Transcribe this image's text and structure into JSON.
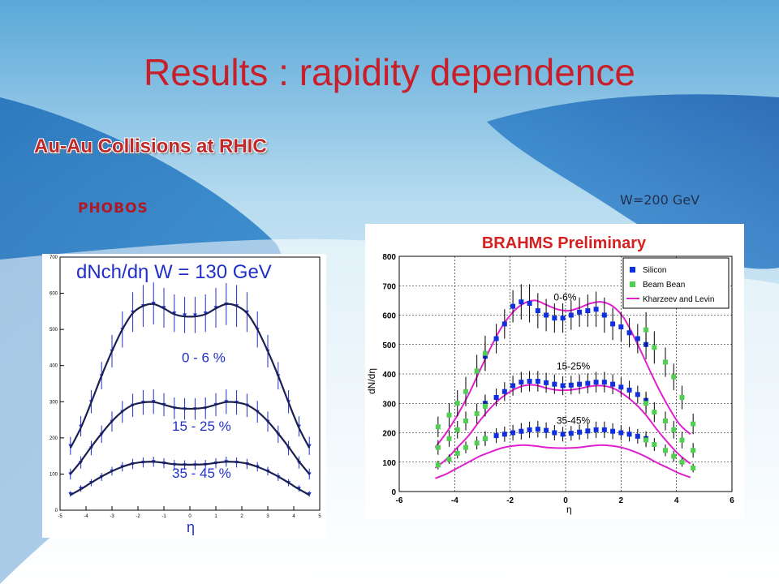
{
  "slide": {
    "title": "Results : rapidity dependence",
    "subtitle": "Au-Au Collisions at RHIC",
    "phobos_label": "PHOBOS",
    "energy_label": "W=200 GeV"
  },
  "colors": {
    "title": "#c8202a",
    "phobos_curve": "#1a2050",
    "phobos_points": "#2030c8",
    "brahms_silicon": "#1030e0",
    "brahms_beambean": "#50d050",
    "brahms_kl": "#e020d0",
    "brahms_title": "#d42020"
  },
  "chart_data": [
    {
      "type": "scatter",
      "panel": "PHOBOS",
      "title": "dNch/dη   W = 130 GeV",
      "xlabel": "η",
      "ylabel": "",
      "xlim": [
        -5,
        5
      ],
      "ylim": [
        0,
        700
      ],
      "xticks": [
        "-5",
        "-4",
        "-3",
        "-2",
        "-1",
        "0",
        "1",
        "2",
        "3",
        "4",
        "5"
      ],
      "yticks": [
        "0",
        "100",
        "200",
        "300",
        "400",
        "500",
        "600",
        "700"
      ],
      "grid": false,
      "series": [
        {
          "name": "0 - 6 %",
          "x": [
            -4.6,
            -4.2,
            -3.8,
            -3.4,
            -3.0,
            -2.6,
            -2.2,
            -1.8,
            -1.4,
            -1.0,
            -0.6,
            -0.2,
            0.2,
            0.6,
            1.0,
            1.4,
            1.8,
            2.2,
            2.6,
            3.0,
            3.4,
            3.8,
            4.2,
            4.6
          ],
          "y": [
            178,
            232,
            300,
            372,
            440,
            500,
            548,
            565,
            572,
            560,
            545,
            540,
            540,
            545,
            560,
            570,
            565,
            548,
            500,
            440,
            372,
            300,
            232,
            178
          ],
          "err": [
            25,
            28,
            32,
            38,
            45,
            50,
            55,
            58,
            58,
            55,
            52,
            50,
            50,
            52,
            55,
            58,
            58,
            55,
            50,
            45,
            38,
            32,
            28,
            25
          ]
        },
        {
          "name": "15 - 25 %",
          "x": [
            -4.6,
            -4.2,
            -3.8,
            -3.4,
            -3.0,
            -2.6,
            -2.2,
            -1.8,
            -1.4,
            -1.0,
            -0.6,
            -0.2,
            0.2,
            0.6,
            1.0,
            1.4,
            1.8,
            2.2,
            2.6,
            3.0,
            3.4,
            3.8,
            4.2,
            4.6
          ],
          "y": [
            100,
            132,
            172,
            210,
            245,
            272,
            290,
            298,
            300,
            292,
            282,
            280,
            280,
            282,
            292,
            300,
            298,
            290,
            272,
            245,
            210,
            172,
            132,
            100
          ],
          "err": [
            15,
            17,
            20,
            24,
            28,
            30,
            32,
            34,
            34,
            32,
            30,
            30,
            30,
            30,
            32,
            34,
            34,
            32,
            30,
            28,
            24,
            20,
            17,
            15
          ]
        },
        {
          "name": "35 - 45 %",
          "x": [
            -4.6,
            -4.2,
            -3.8,
            -3.4,
            -3.0,
            -2.6,
            -2.2,
            -1.8,
            -1.4,
            -1.0,
            -0.6,
            -0.2,
            0.2,
            0.6,
            1.0,
            1.4,
            1.8,
            2.2,
            2.6,
            3.0,
            3.4,
            3.8,
            4.2,
            4.6
          ],
          "y": [
            45,
            60,
            76,
            92,
            108,
            120,
            128,
            132,
            134,
            130,
            126,
            125,
            125,
            126,
            130,
            134,
            132,
            128,
            120,
            108,
            92,
            76,
            60,
            45
          ],
          "err": [
            8,
            9,
            10,
            11,
            12,
            13,
            14,
            14,
            14,
            14,
            13,
            13,
            13,
            13,
            14,
            14,
            14,
            14,
            13,
            12,
            11,
            10,
            9,
            8
          ]
        }
      ],
      "curves": [
        {
          "name": "0 - 6 %",
          "x": [
            -4.6,
            -4.2,
            -3.8,
            -3.4,
            -3.0,
            -2.6,
            -2.2,
            -1.8,
            -1.4,
            -1.0,
            -0.6,
            -0.2,
            0.2,
            0.6,
            1.0,
            1.4,
            1.8,
            2.2,
            2.6,
            3.0,
            3.4,
            3.8,
            4.2,
            4.6
          ],
          "y": [
            172,
            228,
            298,
            372,
            440,
            500,
            545,
            565,
            570,
            558,
            542,
            536,
            536,
            542,
            558,
            570,
            565,
            545,
            500,
            440,
            372,
            298,
            228,
            172
          ]
        },
        {
          "name": "15 - 25 %",
          "x": [
            -4.6,
            -4.2,
            -3.8,
            -3.4,
            -3.0,
            -2.6,
            -2.2,
            -1.8,
            -1.4,
            -1.0,
            -0.6,
            -0.2,
            0.2,
            0.6,
            1.0,
            1.4,
            1.8,
            2.2,
            2.6,
            3.0,
            3.4,
            3.8,
            4.2,
            4.6
          ],
          "y": [
            100,
            135,
            175,
            212,
            246,
            273,
            291,
            298,
            299,
            292,
            284,
            281,
            281,
            284,
            292,
            299,
            298,
            291,
            273,
            246,
            212,
            175,
            135,
            100
          ]
        },
        {
          "name": "35 - 45 %",
          "x": [
            -4.6,
            -4.2,
            -3.8,
            -3.4,
            -3.0,
            -2.6,
            -2.2,
            -1.8,
            -1.4,
            -1.0,
            -0.6,
            -0.2,
            0.2,
            0.6,
            1.0,
            1.4,
            1.8,
            2.2,
            2.6,
            3.0,
            3.4,
            3.8,
            4.2,
            4.6
          ],
          "y": [
            42,
            58,
            76,
            93,
            108,
            120,
            129,
            133,
            134,
            131,
            127,
            126,
            126,
            127,
            131,
            134,
            133,
            129,
            120,
            108,
            93,
            76,
            58,
            42
          ]
        }
      ],
      "annotations": [
        "0 - 6 %",
        "15 - 25 %",
        "35 - 45 %"
      ]
    },
    {
      "type": "scatter",
      "panel": "BRAHMS",
      "title": "BRAHMS Preliminary",
      "xlabel": "η",
      "ylabel": "dN/dη",
      "xlim": [
        -6,
        6
      ],
      "ylim": [
        0,
        800
      ],
      "xticks": [
        "-6",
        "-4",
        "-2",
        "0",
        "2",
        "4",
        "6"
      ],
      "yticks": [
        "0",
        "100",
        "200",
        "300",
        "400",
        "500",
        "600",
        "700",
        "800"
      ],
      "grid": true,
      "legend": {
        "position": "top-right",
        "entries": [
          "Silicon",
          "Beam Bean",
          "Kharzeev and Levin"
        ]
      },
      "annotations": [
        "0-6%",
        "15-25%",
        "35-45%"
      ],
      "series": [
        {
          "name": "Silicon",
          "group": "0-6%",
          "x": [
            -2.9,
            -2.5,
            -2.2,
            -1.9,
            -1.6,
            -1.3,
            -1.0,
            -0.7,
            -0.4,
            -0.1,
            0.2,
            0.5,
            0.8,
            1.1,
            1.4,
            1.7,
            2.0,
            2.3,
            2.6,
            2.9
          ],
          "y": [
            460,
            520,
            570,
            630,
            645,
            640,
            615,
            600,
            590,
            590,
            600,
            610,
            615,
            620,
            600,
            570,
            560,
            540,
            520,
            500
          ],
          "err": [
            50,
            50,
            50,
            55,
            60,
            65,
            60,
            55,
            50,
            50,
            50,
            50,
            55,
            60,
            60,
            55,
            50,
            50,
            50,
            50
          ]
        },
        {
          "name": "Silicon",
          "group": "15-25%",
          "x": [
            -2.9,
            -2.5,
            -2.2,
            -1.9,
            -1.6,
            -1.3,
            -1.0,
            -0.7,
            -0.4,
            -0.1,
            0.2,
            0.5,
            0.8,
            1.1,
            1.4,
            1.7,
            2.0,
            2.3,
            2.6,
            2.9
          ],
          "y": [
            300,
            320,
            340,
            360,
            372,
            375,
            375,
            370,
            365,
            360,
            362,
            365,
            368,
            372,
            372,
            365,
            355,
            345,
            330,
            310
          ],
          "err": [
            30,
            30,
            32,
            34,
            35,
            35,
            35,
            34,
            33,
            32,
            32,
            33,
            34,
            35,
            35,
            34,
            33,
            32,
            30,
            30
          ]
        },
        {
          "name": "Silicon",
          "group": "35-45%",
          "x": [
            -2.9,
            -2.5,
            -2.2,
            -1.9,
            -1.6,
            -1.3,
            -1.0,
            -0.7,
            -0.4,
            -0.1,
            0.2,
            0.5,
            0.8,
            1.1,
            1.4,
            1.7,
            2.0,
            2.3,
            2.6,
            2.9
          ],
          "y": [
            180,
            190,
            195,
            200,
            205,
            210,
            212,
            208,
            200,
            195,
            198,
            202,
            206,
            210,
            210,
            205,
            200,
            195,
            188,
            180
          ],
          "err": [
            25,
            25,
            26,
            27,
            28,
            28,
            28,
            27,
            26,
            25,
            25,
            26,
            27,
            28,
            28,
            27,
            26,
            25,
            25,
            25
          ]
        },
        {
          "name": "Beam Bean",
          "group": "0-6%",
          "x": [
            -4.6,
            -4.2,
            -3.9,
            -3.6,
            -3.2,
            -2.9,
            2.9,
            3.2,
            3.6,
            3.9,
            4.2,
            4.6
          ],
          "y": [
            220,
            260,
            300,
            340,
            410,
            470,
            550,
            490,
            440,
            390,
            320,
            230
          ],
          "err": [
            35,
            40,
            45,
            50,
            55,
            60,
            60,
            55,
            50,
            45,
            40,
            35
          ]
        },
        {
          "name": "Beam Bean",
          "group": "15-25%",
          "x": [
            -4.6,
            -4.2,
            -3.9,
            -3.6,
            -3.2,
            -2.9,
            2.9,
            3.2,
            3.6,
            3.9,
            4.2,
            4.6
          ],
          "y": [
            150,
            180,
            210,
            240,
            265,
            290,
            300,
            270,
            240,
            210,
            175,
            140
          ],
          "err": [
            25,
            28,
            30,
            32,
            34,
            35,
            35,
            34,
            32,
            30,
            28,
            25
          ]
        },
        {
          "name": "Beam Bean",
          "group": "35-45%",
          "x": [
            -4.6,
            -4.2,
            -3.9,
            -3.6,
            -3.2,
            -2.9,
            2.9,
            3.2,
            3.6,
            3.9,
            4.2,
            4.6
          ],
          "y": [
            90,
            110,
            130,
            150,
            165,
            180,
            175,
            160,
            140,
            120,
            100,
            80
          ],
          "err": [
            15,
            16,
            18,
            20,
            22,
            24,
            24,
            22,
            20,
            18,
            16,
            15
          ]
        }
      ],
      "curves": [
        {
          "name": "Kharzeev and Levin",
          "group": "0-6%",
          "x": [
            -4.7,
            -4.3,
            -3.9,
            -3.5,
            -3.1,
            -2.7,
            -2.3,
            -1.9,
            -1.5,
            -1.1,
            -0.7,
            -0.3,
            0.1,
            0.5,
            0.9,
            1.3,
            1.7,
            2.1,
            2.5,
            2.9,
            3.3,
            3.7,
            4.1,
            4.5
          ],
          "y": [
            150,
            200,
            260,
            330,
            410,
            490,
            560,
            610,
            640,
            650,
            635,
            620,
            615,
            625,
            640,
            645,
            630,
            590,
            520,
            440,
            360,
            290,
            230,
            195
          ]
        },
        {
          "name": "Kharzeev and Levin",
          "group": "15-25%",
          "x": [
            -4.7,
            -4.3,
            -3.9,
            -3.5,
            -3.1,
            -2.7,
            -2.3,
            -1.9,
            -1.5,
            -1.1,
            -0.7,
            -0.3,
            0.1,
            0.5,
            0.9,
            1.3,
            1.7,
            2.1,
            2.5,
            2.9,
            3.3,
            3.7,
            4.1,
            4.5
          ],
          "y": [
            80,
            110,
            150,
            190,
            240,
            285,
            320,
            345,
            360,
            362,
            352,
            345,
            345,
            350,
            358,
            360,
            352,
            330,
            300,
            260,
            210,
            165,
            125,
            95
          ]
        },
        {
          "name": "Kharzeev and Levin",
          "group": "35-45%",
          "x": [
            -4.7,
            -4.3,
            -3.9,
            -3.5,
            -3.1,
            -2.7,
            -2.3,
            -1.9,
            -1.5,
            -1.1,
            -0.7,
            -0.3,
            0.1,
            0.5,
            0.9,
            1.3,
            1.7,
            2.1,
            2.5,
            2.9,
            3.3,
            3.7,
            4.1,
            4.5
          ],
          "y": [
            45,
            60,
            80,
            100,
            120,
            135,
            148,
            155,
            158,
            155,
            150,
            148,
            148,
            150,
            155,
            158,
            155,
            148,
            135,
            118,
            98,
            80,
            62,
            48
          ]
        }
      ]
    }
  ]
}
